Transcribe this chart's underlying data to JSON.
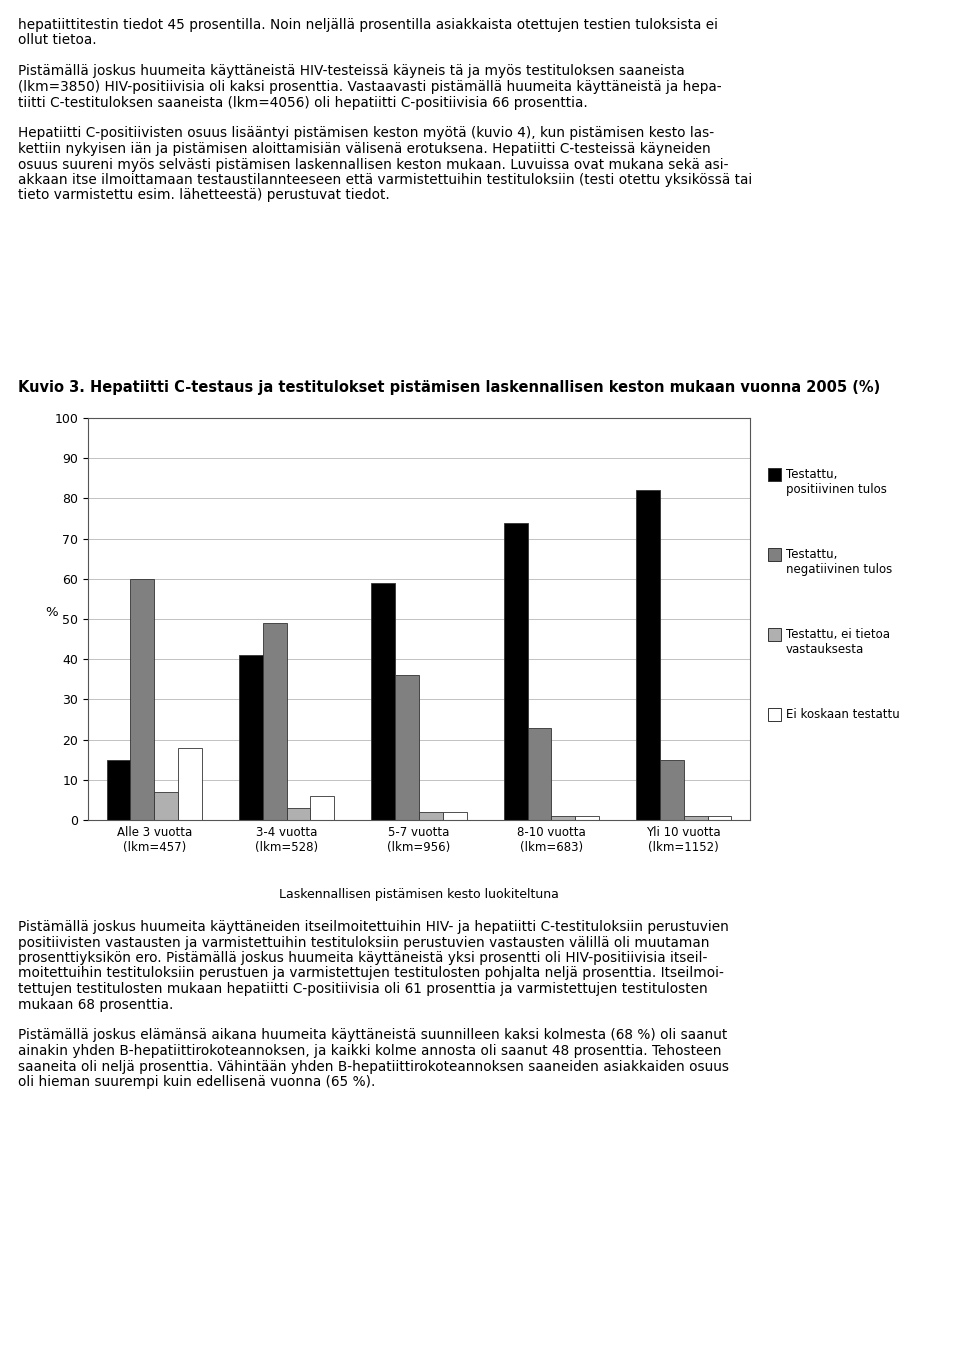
{
  "title": "Kuvio 3. Hepatiitti C-testaus ja testitulokset pistämisen laskennallisen keston mukaan vuonna 2005 (%)",
  "categories": [
    "Alle 3 vuotta\n(lkm=457)",
    "3-4 vuotta\n(lkm=528)",
    "5-7 vuotta\n(lkm=956)",
    "8-10 vuotta\n(lkm=683)",
    "Yli 10 vuotta\n(lkm=1152)"
  ],
  "xlabel": "Laskennallisen pistämisen kesto luokiteltuna",
  "ylabel": "%",
  "ylim": [
    0,
    100
  ],
  "yticks": [
    0,
    10,
    20,
    30,
    40,
    50,
    60,
    70,
    80,
    90,
    100
  ],
  "series_names": [
    "Testattu,\npositiivinen tulos",
    "Testattu,\nnegatiivinen tulos",
    "Testattu, ei tietoa\nvastauksesta",
    "Ei koskaan testattu"
  ],
  "series_values": [
    [
      15,
      41,
      59,
      74,
      82
    ],
    [
      60,
      49,
      36,
      23,
      15
    ],
    [
      7,
      3,
      2,
      1,
      1
    ],
    [
      18,
      6,
      2,
      1,
      1
    ]
  ],
  "series_colors": [
    "#000000",
    "#808080",
    "#b0b0b0",
    "#ffffff"
  ],
  "bar_width": 0.18,
  "background_color": "#ffffff",
  "top_text_lines": [
    "hepatiittitestin tiedot 45 prosentilla. Noin neljällä prosentilla asiakkaista otettujen testien tuloksista ei",
    "ollut tietoa.",
    "",
    "Pistämällä joskus huumeita käyttäneistä HIV-testeissä käyneis tä ja myös testituloksen saaneista",
    "(lkm=3850) HIV-positiivisia oli kaksi prosenttia. Vastaavasti pistämällä huumeita käyttäneistä ja hepa-",
    "tiitti C-testituloksen saaneista (lkm=4056) oli hepatiitti C-positiivisia 66 prosenttia.",
    "",
    "Hepatiitti C-positiivisten osuus lisääntyi pistämisen keston myötä (kuvio 4), kun pistämisen kesto las-",
    "kettiin nykyisen iän ja pistämisen aloittamisiän välisenä erotuksena. Hepatiitti C-testeissä käyneiden",
    "osuus suureni myös selvästi pistämisen laskennallisen keston mukaan. Luvuissa ovat mukana sekä asi-",
    "akkaan itse ilmoittamaan testaustilannteeseen että varmistettuihin testituloksiin (testi otettu yksikössä tai",
    "tieto varmistettu esim. lähetteestä) perustuvat tiedot."
  ],
  "bottom_text_lines": [
    "Pistämällä joskus huumeita käyttäneiden itseilmoitettuihin HIV- ja hepatiitti C-testituloksiin perustuvien",
    "positiivisten vastausten ja varmistettuihin testituloksiin perustuvien vastausten välillä oli muutaman",
    "prosenttiyksikön ero. Pistämällä joskus huumeita käyttäneistä yksi prosentti oli HIV-positiivisia itseil-",
    "moitettuihin testituloksiin perustuen ja varmistettujen testitulosten pohjalta neljä prosenttia. Itseilmoi-",
    "tettujen testitulosten mukaan hepatiitti C-positiivisia oli 61 prosenttia ja varmistettujen testitulosten",
    "mukaan 68 prosenttia.",
    "",
    "Pistämällä joskus elämänsä aikana huumeita käyttäneistä suunnilleen kaksi kolmesta (68 %) oli saanut",
    "ainakin yhden B-hepatiittirokoteannoksen, ja kaikki kolme annosta oli saanut 48 prosenttia. Tehosteen",
    "saaneita oli neljä prosenttia. Vähintään yhden B-hepatiittirokoteannoksen saaneiden asiakkaiden osuus",
    "oli hieman suurempi kuin edellisenä vuonna (65 %)."
  ],
  "fig_w": 960,
  "fig_h": 1372
}
